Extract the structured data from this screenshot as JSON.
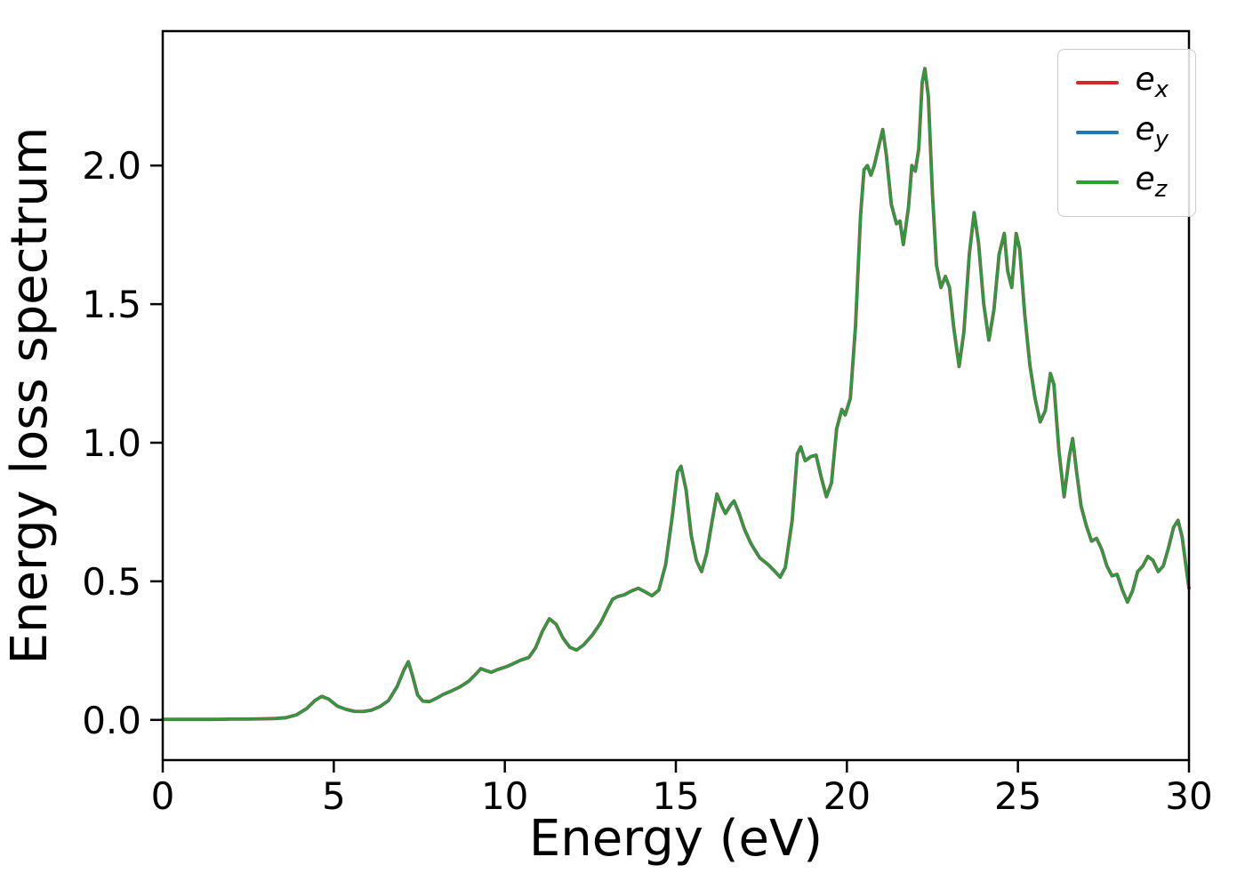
{
  "chart_data": {
    "type": "line",
    "title": "",
    "xlabel": "Energy (eV)",
    "ylabel": "Energy loss spectrum",
    "xlim": [
      0,
      30
    ],
    "ylim": [
      -0.145,
      2.485
    ],
    "grid": false,
    "legend_position": "upper right",
    "xticks": [
      {
        "v": 0,
        "label": "0"
      },
      {
        "v": 5,
        "label": "5"
      },
      {
        "v": 10,
        "label": "10"
      },
      {
        "v": 15,
        "label": "15"
      },
      {
        "v": 20,
        "label": "20"
      },
      {
        "v": 25,
        "label": "25"
      },
      {
        "v": 30,
        "label": "30"
      }
    ],
    "yticks": [
      {
        "v": 0.0,
        "label": "0.0"
      },
      {
        "v": 0.5,
        "label": "0.5"
      },
      {
        "v": 1.0,
        "label": "1.0"
      },
      {
        "v": 1.5,
        "label": "1.5"
      },
      {
        "v": 2.0,
        "label": "2.0"
      }
    ],
    "series": [
      {
        "name": "e_x",
        "label_base": "e",
        "label_sub": "x",
        "color": "#d62728"
      },
      {
        "name": "e_y",
        "label_base": "e",
        "label_sub": "y",
        "color": "#1f77b4"
      },
      {
        "name": "e_z",
        "label_base": "e",
        "label_sub": "z",
        "color": "#2ca02c"
      }
    ],
    "series_note": "all three series overlap; shared sampled points below",
    "points": [
      [
        0.0,
        0.002
      ],
      [
        0.5,
        0.002
      ],
      [
        1.0,
        0.002
      ],
      [
        1.5,
        0.002
      ],
      [
        2.0,
        0.003
      ],
      [
        2.5,
        0.003
      ],
      [
        3.0,
        0.004
      ],
      [
        3.3,
        0.005
      ],
      [
        3.6,
        0.008
      ],
      [
        3.9,
        0.018
      ],
      [
        4.2,
        0.04
      ],
      [
        4.45,
        0.07
      ],
      [
        4.65,
        0.085
      ],
      [
        4.85,
        0.075
      ],
      [
        5.1,
        0.05
      ],
      [
        5.35,
        0.038
      ],
      [
        5.6,
        0.031
      ],
      [
        5.85,
        0.03
      ],
      [
        6.1,
        0.035
      ],
      [
        6.35,
        0.048
      ],
      [
        6.6,
        0.07
      ],
      [
        6.85,
        0.12
      ],
      [
        7.05,
        0.18
      ],
      [
        7.18,
        0.21
      ],
      [
        7.3,
        0.16
      ],
      [
        7.45,
        0.09
      ],
      [
        7.6,
        0.068
      ],
      [
        7.8,
        0.066
      ],
      [
        8.0,
        0.078
      ],
      [
        8.2,
        0.092
      ],
      [
        8.45,
        0.105
      ],
      [
        8.7,
        0.12
      ],
      [
        8.95,
        0.14
      ],
      [
        9.15,
        0.165
      ],
      [
        9.3,
        0.185
      ],
      [
        9.45,
        0.178
      ],
      [
        9.6,
        0.172
      ],
      [
        9.8,
        0.182
      ],
      [
        10.0,
        0.19
      ],
      [
        10.2,
        0.2
      ],
      [
        10.45,
        0.215
      ],
      [
        10.7,
        0.225
      ],
      [
        10.9,
        0.26
      ],
      [
        11.1,
        0.32
      ],
      [
        11.3,
        0.365
      ],
      [
        11.5,
        0.345
      ],
      [
        11.7,
        0.295
      ],
      [
        11.9,
        0.262
      ],
      [
        12.1,
        0.252
      ],
      [
        12.3,
        0.27
      ],
      [
        12.55,
        0.305
      ],
      [
        12.8,
        0.35
      ],
      [
        13.0,
        0.4
      ],
      [
        13.15,
        0.435
      ],
      [
        13.3,
        0.445
      ],
      [
        13.5,
        0.452
      ],
      [
        13.7,
        0.465
      ],
      [
        13.9,
        0.475
      ],
      [
        14.1,
        0.462
      ],
      [
        14.3,
        0.448
      ],
      [
        14.5,
        0.468
      ],
      [
        14.7,
        0.56
      ],
      [
        14.9,
        0.74
      ],
      [
        15.05,
        0.895
      ],
      [
        15.15,
        0.915
      ],
      [
        15.3,
        0.83
      ],
      [
        15.45,
        0.665
      ],
      [
        15.6,
        0.575
      ],
      [
        15.75,
        0.535
      ],
      [
        15.9,
        0.6
      ],
      [
        16.05,
        0.71
      ],
      [
        16.2,
        0.815
      ],
      [
        16.35,
        0.77
      ],
      [
        16.45,
        0.745
      ],
      [
        16.6,
        0.775
      ],
      [
        16.7,
        0.79
      ],
      [
        16.85,
        0.745
      ],
      [
        17.0,
        0.69
      ],
      [
        17.2,
        0.635
      ],
      [
        17.45,
        0.585
      ],
      [
        17.7,
        0.56
      ],
      [
        17.9,
        0.535
      ],
      [
        18.05,
        0.515
      ],
      [
        18.2,
        0.55
      ],
      [
        18.4,
        0.72
      ],
      [
        18.55,
        0.96
      ],
      [
        18.65,
        0.985
      ],
      [
        18.78,
        0.935
      ],
      [
        18.95,
        0.95
      ],
      [
        19.1,
        0.955
      ],
      [
        19.25,
        0.875
      ],
      [
        19.4,
        0.805
      ],
      [
        19.55,
        0.855
      ],
      [
        19.7,
        1.05
      ],
      [
        19.85,
        1.12
      ],
      [
        19.95,
        1.1
      ],
      [
        20.1,
        1.16
      ],
      [
        20.25,
        1.42
      ],
      [
        20.4,
        1.82
      ],
      [
        20.5,
        1.985
      ],
      [
        20.6,
        2.0
      ],
      [
        20.7,
        1.965
      ],
      [
        20.8,
        2.0
      ],
      [
        20.95,
        2.08
      ],
      [
        21.05,
        2.13
      ],
      [
        21.15,
        2.04
      ],
      [
        21.3,
        1.86
      ],
      [
        21.45,
        1.79
      ],
      [
        21.55,
        1.8
      ],
      [
        21.65,
        1.715
      ],
      [
        21.8,
        1.85
      ],
      [
        21.9,
        2.0
      ],
      [
        22.0,
        1.98
      ],
      [
        22.1,
        2.06
      ],
      [
        22.2,
        2.3
      ],
      [
        22.28,
        2.35
      ],
      [
        22.38,
        2.25
      ],
      [
        22.5,
        1.9
      ],
      [
        22.62,
        1.64
      ],
      [
        22.75,
        1.56
      ],
      [
        22.88,
        1.6
      ],
      [
        23.0,
        1.56
      ],
      [
        23.12,
        1.42
      ],
      [
        23.28,
        1.275
      ],
      [
        23.42,
        1.4
      ],
      [
        23.58,
        1.68
      ],
      [
        23.72,
        1.83
      ],
      [
        23.85,
        1.72
      ],
      [
        24.0,
        1.5
      ],
      [
        24.15,
        1.37
      ],
      [
        24.3,
        1.48
      ],
      [
        24.45,
        1.68
      ],
      [
        24.6,
        1.755
      ],
      [
        24.7,
        1.62
      ],
      [
        24.82,
        1.56
      ],
      [
        24.95,
        1.755
      ],
      [
        25.05,
        1.7
      ],
      [
        25.2,
        1.46
      ],
      [
        25.35,
        1.28
      ],
      [
        25.5,
        1.16
      ],
      [
        25.65,
        1.075
      ],
      [
        25.8,
        1.115
      ],
      [
        25.95,
        1.25
      ],
      [
        26.05,
        1.21
      ],
      [
        26.2,
        0.97
      ],
      [
        26.35,
        0.805
      ],
      [
        26.5,
        0.95
      ],
      [
        26.6,
        1.015
      ],
      [
        26.72,
        0.89
      ],
      [
        26.85,
        0.77
      ],
      [
        27.0,
        0.7
      ],
      [
        27.15,
        0.645
      ],
      [
        27.3,
        0.655
      ],
      [
        27.45,
        0.615
      ],
      [
        27.6,
        0.555
      ],
      [
        27.75,
        0.52
      ],
      [
        27.9,
        0.525
      ],
      [
        28.05,
        0.47
      ],
      [
        28.2,
        0.425
      ],
      [
        28.35,
        0.465
      ],
      [
        28.5,
        0.535
      ],
      [
        28.65,
        0.555
      ],
      [
        28.8,
        0.59
      ],
      [
        28.95,
        0.575
      ],
      [
        29.1,
        0.535
      ],
      [
        29.25,
        0.555
      ],
      [
        29.4,
        0.62
      ],
      [
        29.55,
        0.695
      ],
      [
        29.68,
        0.72
      ],
      [
        29.8,
        0.66
      ],
      [
        29.9,
        0.565
      ],
      [
        30.0,
        0.475
      ]
    ]
  }
}
